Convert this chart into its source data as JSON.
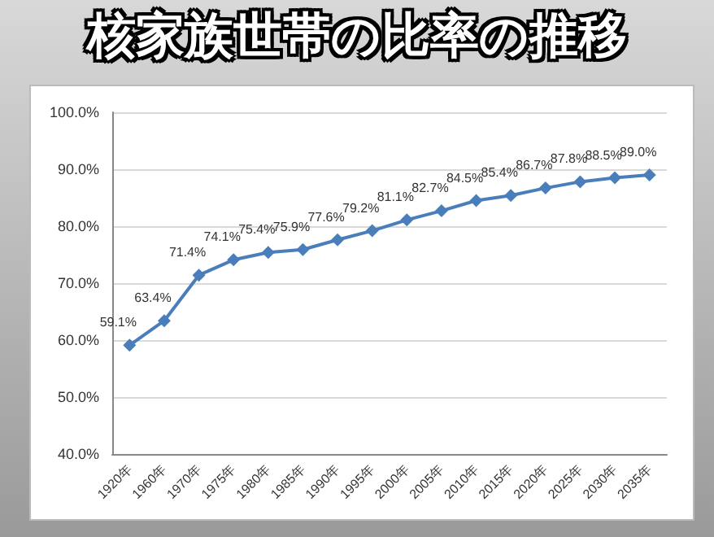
{
  "chart_data": {
    "type": "line",
    "title": "核家族世帯の比率の推移",
    "categories": [
      "1920年",
      "1960年",
      "1970年",
      "1975年",
      "1980年",
      "1985年",
      "1990年",
      "1995年",
      "2000年",
      "2005年",
      "2010年",
      "2015年",
      "2020年",
      "2025年",
      "2030年",
      "2035年"
    ],
    "series": [
      {
        "color": "#4a7ebb",
        "values": [
          59.1,
          63.4,
          71.4,
          74.1,
          75.4,
          75.9,
          77.6,
          79.2,
          81.1,
          82.7,
          84.5,
          85.4,
          86.7,
          87.8,
          88.5,
          89.0
        ],
        "value_labels": [
          "59.1%",
          "63.4%",
          "71.4%",
          "74.1%",
          "75.4%",
          "75.9%",
          "77.6%",
          "79.2%",
          "81.1%",
          "82.7%",
          "84.5%",
          "85.4%",
          "86.7%",
          "87.8%",
          "88.5%",
          "89.0%"
        ]
      }
    ],
    "ylim": [
      40,
      100
    ],
    "yticks": [
      {
        "value": 40,
        "label": "40.0%"
      },
      {
        "value": 50,
        "label": "50.0%"
      },
      {
        "value": 60,
        "label": "60.0%"
      },
      {
        "value": 70,
        "label": "70.0%"
      },
      {
        "value": 80,
        "label": "80.0%"
      },
      {
        "value": 90,
        "label": "90.0%"
      },
      {
        "value": 100,
        "label": "100.0%"
      }
    ],
    "grid": "y",
    "marker": "diamond",
    "line_style": "solid"
  }
}
